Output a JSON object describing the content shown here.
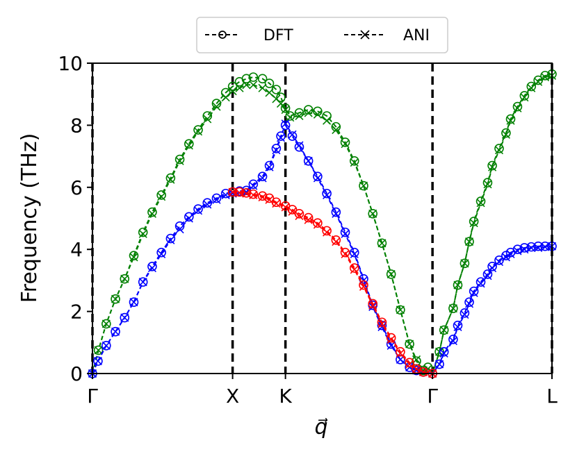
{
  "chart_data": {
    "type": "line",
    "title": "",
    "xlabel": "q⃗",
    "ylabel": "Frequency (THz)",
    "ylim": [
      0,
      10
    ],
    "yticks": [
      0,
      2,
      4,
      6,
      8,
      10
    ],
    "xlim": [
      0,
      1
    ],
    "high_symmetry_points": [
      {
        "label": "Γ",
        "x": 0.0
      },
      {
        "label": "X",
        "x": 0.305
      },
      {
        "label": "K",
        "x": 0.42
      },
      {
        "label": "Γ",
        "x": 0.74
      },
      {
        "label": "L",
        "x": 1.0
      }
    ],
    "legend": {
      "placement": "top-center",
      "entries": [
        {
          "label": "DFT",
          "marker": "circle"
        },
        {
          "label": "ANI",
          "marker": "x"
        }
      ]
    },
    "branch_colors": {
      "green": "#008000",
      "blue": "#0000ff",
      "red": "#ff0000"
    },
    "series": [
      {
        "color": "#008000",
        "dft": [
          [
            0,
            0
          ],
          [
            0.013,
            0.75
          ],
          [
            0.03,
            1.6
          ],
          [
            0.05,
            2.4
          ],
          [
            0.07,
            3.05
          ],
          [
            0.09,
            3.8
          ],
          [
            0.11,
            4.55
          ],
          [
            0.13,
            5.2
          ],
          [
            0.15,
            5.75
          ],
          [
            0.17,
            6.3
          ],
          [
            0.19,
            6.9
          ],
          [
            0.21,
            7.4
          ],
          [
            0.23,
            7.85
          ],
          [
            0.25,
            8.3
          ],
          [
            0.27,
            8.7
          ],
          [
            0.29,
            9.05
          ],
          [
            0.305,
            9.25
          ],
          [
            0.32,
            9.4
          ],
          [
            0.335,
            9.5
          ],
          [
            0.35,
            9.55
          ],
          [
            0.37,
            9.5
          ],
          [
            0.385,
            9.35
          ],
          [
            0.4,
            9.15
          ],
          [
            0.41,
            8.9
          ],
          [
            0.42,
            8.55
          ],
          [
            0.43,
            8.3
          ],
          [
            0.45,
            8.4
          ],
          [
            0.47,
            8.5
          ],
          [
            0.49,
            8.45
          ],
          [
            0.51,
            8.3
          ],
          [
            0.53,
            7.95
          ],
          [
            0.55,
            7.45
          ],
          [
            0.57,
            6.85
          ],
          [
            0.59,
            6.05
          ],
          [
            0.61,
            5.15
          ],
          [
            0.63,
            4.2
          ],
          [
            0.65,
            3.2
          ],
          [
            0.67,
            2.05
          ],
          [
            0.69,
            0.95
          ],
          [
            0.705,
            0.4
          ],
          [
            0.72,
            0.1
          ],
          [
            0.73,
            0.2
          ],
          [
            0.74,
            0.0
          ],
          [
            0.755,
            0.7
          ],
          [
            0.765,
            1.4
          ],
          [
            0.785,
            2.1
          ],
          [
            0.795,
            2.85
          ],
          [
            0.81,
            3.55
          ],
          [
            0.82,
            4.25
          ],
          [
            0.83,
            4.9
          ],
          [
            0.845,
            5.55
          ],
          [
            0.86,
            6.15
          ],
          [
            0.87,
            6.7
          ],
          [
            0.885,
            7.25
          ],
          [
            0.9,
            7.75
          ],
          [
            0.91,
            8.2
          ],
          [
            0.925,
            8.6
          ],
          [
            0.94,
            8.95
          ],
          [
            0.955,
            9.25
          ],
          [
            0.97,
            9.45
          ],
          [
            0.985,
            9.6
          ],
          [
            1.0,
            9.65
          ]
        ],
        "ani": [
          [
            0,
            0
          ],
          [
            0.013,
            0.75
          ],
          [
            0.03,
            1.6
          ],
          [
            0.05,
            2.4
          ],
          [
            0.07,
            3.05
          ],
          [
            0.09,
            3.75
          ],
          [
            0.11,
            4.5
          ],
          [
            0.13,
            5.15
          ],
          [
            0.15,
            5.7
          ],
          [
            0.17,
            6.25
          ],
          [
            0.19,
            6.85
          ],
          [
            0.21,
            7.35
          ],
          [
            0.23,
            7.8
          ],
          [
            0.25,
            8.2
          ],
          [
            0.27,
            8.6
          ],
          [
            0.29,
            8.9
          ],
          [
            0.305,
            9.1
          ],
          [
            0.32,
            9.2
          ],
          [
            0.335,
            9.3
          ],
          [
            0.35,
            9.3
          ],
          [
            0.37,
            9.2
          ],
          [
            0.385,
            9.05
          ],
          [
            0.4,
            8.85
          ],
          [
            0.41,
            8.7
          ],
          [
            0.42,
            8.5
          ],
          [
            0.43,
            8.25
          ],
          [
            0.45,
            8.3
          ],
          [
            0.47,
            8.4
          ],
          [
            0.49,
            8.35
          ],
          [
            0.51,
            8.15
          ],
          [
            0.53,
            7.85
          ],
          [
            0.55,
            7.4
          ],
          [
            0.57,
            6.8
          ],
          [
            0.59,
            6.05
          ],
          [
            0.61,
            5.15
          ],
          [
            0.63,
            4.2
          ],
          [
            0.65,
            3.2
          ],
          [
            0.67,
            2.05
          ],
          [
            0.69,
            0.95
          ],
          [
            0.705,
            0.45
          ],
          [
            0.72,
            0.1
          ],
          [
            0.73,
            0.15
          ],
          [
            0.74,
            0.0
          ],
          [
            0.755,
            0.7
          ],
          [
            0.765,
            1.4
          ],
          [
            0.785,
            2.1
          ],
          [
            0.795,
            2.85
          ],
          [
            0.81,
            3.55
          ],
          [
            0.82,
            4.25
          ],
          [
            0.83,
            4.85
          ],
          [
            0.845,
            5.5
          ],
          [
            0.86,
            6.1
          ],
          [
            0.87,
            6.65
          ],
          [
            0.885,
            7.2
          ],
          [
            0.9,
            7.7
          ],
          [
            0.91,
            8.15
          ],
          [
            0.925,
            8.55
          ],
          [
            0.94,
            8.9
          ],
          [
            0.955,
            9.2
          ],
          [
            0.97,
            9.4
          ],
          [
            0.985,
            9.55
          ],
          [
            1.0,
            9.6
          ]
        ]
      },
      {
        "color": "#0000ff",
        "dft": [
          [
            0,
            0
          ],
          [
            0.012,
            0.4
          ],
          [
            0.03,
            0.9
          ],
          [
            0.05,
            1.35
          ],
          [
            0.07,
            1.8
          ],
          [
            0.09,
            2.3
          ],
          [
            0.11,
            2.95
          ],
          [
            0.13,
            3.45
          ],
          [
            0.15,
            3.9
          ],
          [
            0.17,
            4.35
          ],
          [
            0.19,
            4.75
          ],
          [
            0.21,
            5.05
          ],
          [
            0.23,
            5.3
          ],
          [
            0.25,
            5.5
          ],
          [
            0.27,
            5.65
          ],
          [
            0.29,
            5.8
          ],
          [
            0.305,
            5.85
          ],
          [
            0.32,
            5.88
          ],
          [
            0.335,
            5.9
          ],
          [
            0.35,
            6.1
          ],
          [
            0.37,
            6.35
          ],
          [
            0.385,
            6.7
          ],
          [
            0.4,
            7.25
          ],
          [
            0.41,
            7.65
          ],
          [
            0.42,
            8.0
          ],
          [
            0.435,
            7.65
          ],
          [
            0.45,
            7.3
          ],
          [
            0.47,
            6.85
          ],
          [
            0.49,
            6.35
          ],
          [
            0.51,
            5.8
          ],
          [
            0.53,
            5.2
          ],
          [
            0.55,
            4.55
          ],
          [
            0.57,
            3.9
          ],
          [
            0.59,
            3.05
          ],
          [
            0.61,
            2.2
          ],
          [
            0.63,
            1.55
          ],
          [
            0.65,
            0.95
          ],
          [
            0.67,
            0.45
          ],
          [
            0.69,
            0.2
          ],
          [
            0.705,
            0.1
          ],
          [
            0.72,
            0.05
          ],
          [
            0.74,
            0.0
          ],
          [
            0.755,
            0.3
          ],
          [
            0.765,
            0.7
          ],
          [
            0.785,
            1.1
          ],
          [
            0.795,
            1.55
          ],
          [
            0.81,
            1.95
          ],
          [
            0.82,
            2.3
          ],
          [
            0.83,
            2.65
          ],
          [
            0.845,
            2.95
          ],
          [
            0.86,
            3.2
          ],
          [
            0.87,
            3.45
          ],
          [
            0.885,
            3.65
          ],
          [
            0.9,
            3.8
          ],
          [
            0.91,
            3.9
          ],
          [
            0.925,
            4.0
          ],
          [
            0.94,
            4.05
          ],
          [
            0.955,
            4.08
          ],
          [
            0.97,
            4.1
          ],
          [
            0.985,
            4.1
          ],
          [
            1.0,
            4.1
          ]
        ],
        "ani": [
          [
            0,
            0
          ],
          [
            0.012,
            0.4
          ],
          [
            0.03,
            0.9
          ],
          [
            0.05,
            1.35
          ],
          [
            0.07,
            1.8
          ],
          [
            0.09,
            2.3
          ],
          [
            0.11,
            2.95
          ],
          [
            0.13,
            3.4
          ],
          [
            0.15,
            3.85
          ],
          [
            0.17,
            4.3
          ],
          [
            0.19,
            4.65
          ],
          [
            0.21,
            5.0
          ],
          [
            0.23,
            5.25
          ],
          [
            0.25,
            5.45
          ],
          [
            0.27,
            5.6
          ],
          [
            0.29,
            5.75
          ],
          [
            0.305,
            5.8
          ],
          [
            0.32,
            5.82
          ],
          [
            0.335,
            5.85
          ],
          [
            0.35,
            6.05
          ],
          [
            0.37,
            6.3
          ],
          [
            0.385,
            6.65
          ],
          [
            0.4,
            7.2
          ],
          [
            0.41,
            7.6
          ],
          [
            0.42,
            8.05
          ],
          [
            0.435,
            7.7
          ],
          [
            0.45,
            7.35
          ],
          [
            0.47,
            6.85
          ],
          [
            0.49,
            6.3
          ],
          [
            0.51,
            5.75
          ],
          [
            0.53,
            5.15
          ],
          [
            0.55,
            4.5
          ],
          [
            0.57,
            3.85
          ],
          [
            0.59,
            3.0
          ],
          [
            0.61,
            2.15
          ],
          [
            0.63,
            1.5
          ],
          [
            0.65,
            0.9
          ],
          [
            0.67,
            0.45
          ],
          [
            0.69,
            0.2
          ],
          [
            0.705,
            0.1
          ],
          [
            0.72,
            0.05
          ],
          [
            0.74,
            0.0
          ],
          [
            0.755,
            0.3
          ],
          [
            0.765,
            0.65
          ],
          [
            0.785,
            1.05
          ],
          [
            0.795,
            1.5
          ],
          [
            0.81,
            1.9
          ],
          [
            0.82,
            2.25
          ],
          [
            0.83,
            2.6
          ],
          [
            0.845,
            2.9
          ],
          [
            0.86,
            3.15
          ],
          [
            0.87,
            3.4
          ],
          [
            0.885,
            3.6
          ],
          [
            0.9,
            3.75
          ],
          [
            0.91,
            3.85
          ],
          [
            0.925,
            3.95
          ],
          [
            0.94,
            4.0
          ],
          [
            0.955,
            4.05
          ],
          [
            0.97,
            4.05
          ],
          [
            0.985,
            4.08
          ],
          [
            1.0,
            4.1
          ]
        ]
      },
      {
        "color": "#ff0000",
        "dft": [
          [
            0.305,
            5.85
          ],
          [
            0.32,
            5.85
          ],
          [
            0.335,
            5.82
          ],
          [
            0.35,
            5.78
          ],
          [
            0.37,
            5.72
          ],
          [
            0.385,
            5.65
          ],
          [
            0.4,
            5.52
          ],
          [
            0.42,
            5.4
          ],
          [
            0.435,
            5.28
          ],
          [
            0.45,
            5.15
          ],
          [
            0.47,
            5.02
          ],
          [
            0.49,
            4.85
          ],
          [
            0.51,
            4.6
          ],
          [
            0.53,
            4.3
          ],
          [
            0.55,
            3.9
          ],
          [
            0.57,
            3.4
          ],
          [
            0.59,
            2.85
          ],
          [
            0.61,
            2.25
          ],
          [
            0.63,
            1.65
          ],
          [
            0.65,
            1.15
          ],
          [
            0.67,
            0.7
          ],
          [
            0.69,
            0.35
          ],
          [
            0.705,
            0.15
          ],
          [
            0.72,
            0.05
          ],
          [
            0.74,
            0.0
          ]
        ],
        "ani": [
          [
            0.305,
            5.85
          ],
          [
            0.32,
            5.82
          ],
          [
            0.335,
            5.8
          ],
          [
            0.35,
            5.75
          ],
          [
            0.37,
            5.68
          ],
          [
            0.385,
            5.6
          ],
          [
            0.4,
            5.48
          ],
          [
            0.42,
            5.36
          ],
          [
            0.435,
            5.22
          ],
          [
            0.45,
            5.08
          ],
          [
            0.47,
            4.95
          ],
          [
            0.49,
            4.8
          ],
          [
            0.51,
            4.55
          ],
          [
            0.53,
            4.25
          ],
          [
            0.55,
            3.85
          ],
          [
            0.57,
            3.35
          ],
          [
            0.59,
            2.8
          ],
          [
            0.61,
            2.2
          ],
          [
            0.63,
            1.6
          ],
          [
            0.65,
            1.1
          ],
          [
            0.67,
            0.65
          ],
          [
            0.69,
            0.3
          ],
          [
            0.705,
            0.15
          ],
          [
            0.72,
            0.05
          ],
          [
            0.74,
            0.0
          ]
        ]
      }
    ]
  }
}
